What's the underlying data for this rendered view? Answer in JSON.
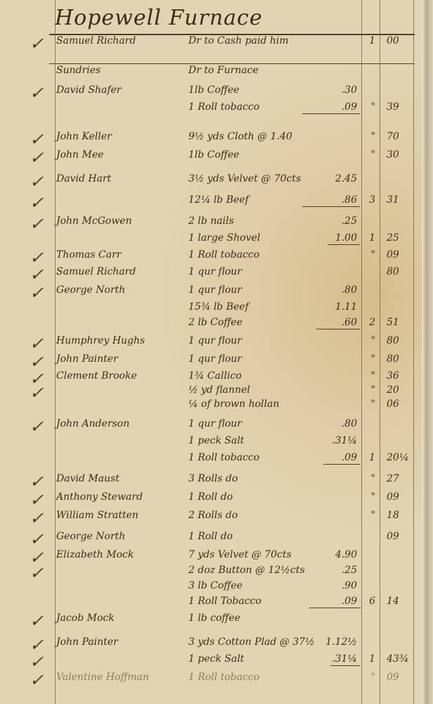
{
  "title": "Hopewell Furnace",
  "entries": [
    {
      "name": "Samuel Richard",
      "item": "Dr to Cash paid him",
      "amount": "",
      "dollars": "1",
      "cents": "00",
      "checked": true
    },
    {
      "name": "Sundries",
      "item": "Dr to Furnace",
      "amount": "",
      "dollars": "",
      "cents": "",
      "checked": false
    },
    {
      "name": "David Shafer",
      "item": "1lb Coffee",
      "amount": ".30",
      "dollars": "",
      "cents": "",
      "checked": true
    },
    {
      "name": "",
      "item": "1 Roll tobacco",
      "amount": ".09",
      "dollars": "\"",
      "cents": "39",
      "checked": false
    },
    {
      "name": "John Keller",
      "item": "9½ yds Cloth @ 1.40",
      "amount": "",
      "dollars": "\"",
      "cents": "70",
      "checked": true
    },
    {
      "name": "John Mee",
      "item": "1lb Coffee",
      "amount": "",
      "dollars": "\"",
      "cents": "30",
      "checked": true
    },
    {
      "name": "David Hart",
      "item": "3½ yds Velvet @ 70cts",
      "amount": "2.45",
      "dollars": "",
      "cents": "",
      "checked": true
    },
    {
      "name": "",
      "item": "12¼ lb Beef",
      "amount": ".86",
      "dollars": "3",
      "cents": "31",
      "checked": true
    },
    {
      "name": "John McGowen",
      "item": "2 lb nails",
      "amount": ".25",
      "dollars": "",
      "cents": "",
      "checked": true
    },
    {
      "name": "",
      "item": "1 large Shovel",
      "amount": "1.00",
      "dollars": "1",
      "cents": "25",
      "checked": false
    },
    {
      "name": "Thomas Carr",
      "item": "1 Roll tobacco",
      "amount": "",
      "dollars": "\"",
      "cents": "09",
      "checked": true
    },
    {
      "name": "Samuel Richard",
      "item": "1 qur flour",
      "amount": "",
      "dollars": "",
      "cents": "80",
      "checked": true
    },
    {
      "name": "George North",
      "item": "1 qur flour",
      "amount": ".80",
      "dollars": "",
      "cents": "",
      "checked": true
    },
    {
      "name": "",
      "item": "15¾ lb Beef",
      "amount": "1.11",
      "dollars": "",
      "cents": "",
      "checked": false
    },
    {
      "name": "",
      "item": "2 lb Coffee",
      "amount": ".60",
      "dollars": "2",
      "cents": "51",
      "checked": false
    },
    {
      "name": "Humphrey Hughs",
      "item": "1 qur flour",
      "amount": "",
      "dollars": "\"",
      "cents": "80",
      "checked": true
    },
    {
      "name": "John Painter",
      "item": "1 qur flour",
      "amount": "",
      "dollars": "\"",
      "cents": "80",
      "checked": true
    },
    {
      "name": "Clement Brooke",
      "item": "1¾ Callico",
      "amount": "",
      "dollars": "\"",
      "cents": "36",
      "checked": true
    },
    {
      "name": "",
      "item": "½ yd flannel",
      "amount": "",
      "dollars": "\"",
      "cents": "20",
      "checked": true
    },
    {
      "name": "",
      "item": "¼ of brown hollan",
      "amount": "",
      "dollars": "\"",
      "cents": "06",
      "checked": false
    },
    {
      "name": "John Anderson",
      "item": "1 qur flour",
      "amount": ".80",
      "dollars": "",
      "cents": "",
      "checked": true
    },
    {
      "name": "",
      "item": "1 peck Salt",
      "amount": ".31¼",
      "dollars": "",
      "cents": "",
      "checked": false
    },
    {
      "name": "",
      "item": "1 Roll tobacco",
      "amount": ".09",
      "dollars": "1",
      "cents": "20¼",
      "checked": false
    },
    {
      "name": "David Maust",
      "item": "3 Rolls do",
      "amount": "",
      "dollars": "\"",
      "cents": "27",
      "checked": true
    },
    {
      "name": "Anthony Steward",
      "item": "1 Roll do",
      "amount": "",
      "dollars": "\"",
      "cents": "09",
      "checked": true
    },
    {
      "name": "William Stratten",
      "item": "2 Rolls do",
      "amount": "",
      "dollars": "\"",
      "cents": "18",
      "checked": true
    },
    {
      "name": "George North",
      "item": "1 Roll do",
      "amount": "",
      "dollars": "",
      "cents": "09",
      "checked": true
    },
    {
      "name": "Elizabeth Mock",
      "item": "7 yds Velvet @ 70cts",
      "amount": "4.90",
      "dollars": "",
      "cents": "",
      "checked": true
    },
    {
      "name": "",
      "item": "2 doz Button @ 12½cts",
      "amount": ".25",
      "dollars": "",
      "cents": "",
      "checked": true
    },
    {
      "name": "",
      "item": "3 lb Coffee",
      "amount": ".90",
      "dollars": "",
      "cents": "",
      "checked": false
    },
    {
      "name": "",
      "item": "1 Roll Tobacco",
      "amount": ".09",
      "dollars": "6",
      "cents": "14",
      "checked": false
    },
    {
      "name": "Jacob Mock",
      "item": "1 lb coffee",
      "amount": "",
      "dollars": "",
      "cents": "",
      "checked": true
    },
    {
      "name": "John Painter",
      "item": "3 yds Cotton Plad @ 37½",
      "amount": "1.12½",
      "dollars": "",
      "cents": "",
      "checked": true
    },
    {
      "name": "",
      "item": "1 peck Salt",
      "amount": ".31¼",
      "dollars": "1",
      "cents": "43¾",
      "checked": true
    },
    {
      "name": "Valentine Hoffman",
      "item": "1 Roll tobacco",
      "amount": "",
      "dollars": "\"",
      "cents": "09",
      "checked": true
    }
  ]
}
